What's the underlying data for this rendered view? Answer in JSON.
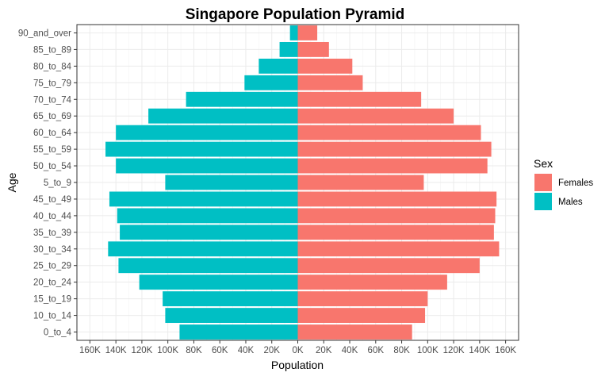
{
  "chart_data": {
    "type": "bar",
    "orientation": "horizontal",
    "title": "Singapore Population Pyramid",
    "xlabel": "Population",
    "ylabel": "Age",
    "xlim": [
      -170000,
      170000
    ],
    "x_ticks": [
      -160000,
      -140000,
      -120000,
      -100000,
      -80000,
      -60000,
      -40000,
      -20000,
      0,
      20000,
      40000,
      60000,
      80000,
      100000,
      120000,
      140000,
      160000
    ],
    "x_tick_labels": [
      "160K",
      "140K",
      "120K",
      "100K",
      "80K",
      "60K",
      "40K",
      "20K",
      "0K",
      "20K",
      "40K",
      "60K",
      "80K",
      "100K",
      "120K",
      "140K",
      "160K"
    ],
    "categories": [
      "0_to_4",
      "10_to_14",
      "15_to_19",
      "20_to_24",
      "25_to_29",
      "30_to_34",
      "35_to_39",
      "40_to_44",
      "45_to_49",
      "5_to_9",
      "50_to_54",
      "55_to_59",
      "60_to_64",
      "65_to_69",
      "70_to_74",
      "75_to_79",
      "80_to_84",
      "85_to_89",
      "90_and_over"
    ],
    "series": [
      {
        "name": "Females",
        "color": "#F8766D",
        "side": "right",
        "values": [
          88000,
          98000,
          100000,
          115000,
          140000,
          155000,
          151000,
          152000,
          153000,
          97000,
          146000,
          149000,
          141000,
          120000,
          95000,
          50000,
          42000,
          24000,
          15000
        ]
      },
      {
        "name": "Males",
        "color": "#00BFC4",
        "side": "left",
        "values": [
          91000,
          102000,
          104000,
          122000,
          138000,
          146000,
          137000,
          139000,
          145000,
          102000,
          140000,
          148000,
          140000,
          115000,
          86000,
          41000,
          30000,
          14000,
          6000
        ]
      }
    ],
    "legend": {
      "title": "Sex",
      "position": "right"
    },
    "grid": true
  }
}
